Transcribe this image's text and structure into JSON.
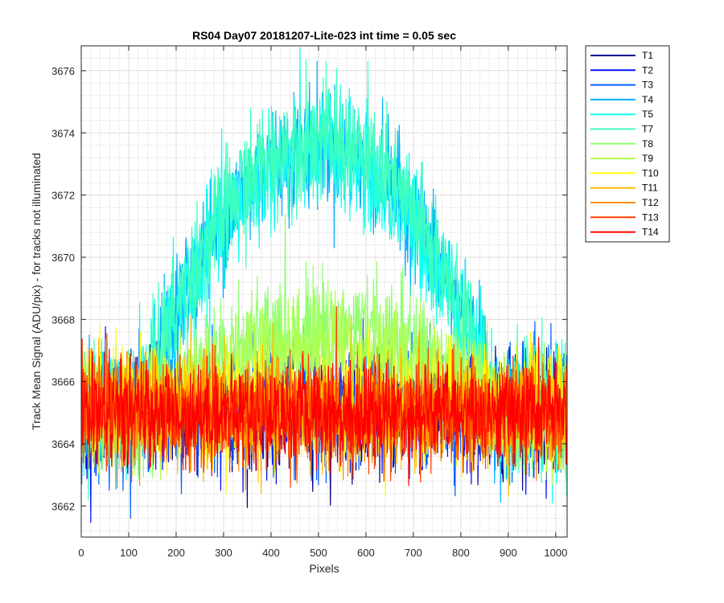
{
  "chart_data": {
    "type": "line",
    "title": "RS04 Day07 20181207-Lite-023 int time = 0.05 sec",
    "xlabel": "Pixels",
    "ylabel": "Track Mean Signal (ADU/pix) - for tracks not illuminated",
    "xlim": [
      0,
      1024
    ],
    "ylim": [
      3661,
      3676.8
    ],
    "x_ticks": [
      0,
      100,
      200,
      300,
      400,
      500,
      600,
      700,
      800,
      900,
      1000
    ],
    "y_ticks": [
      3662,
      3664,
      3666,
      3668,
      3670,
      3672,
      3674,
      3676
    ],
    "grid": "major and minor",
    "legend_position": "outside-right",
    "series": [
      {
        "name": "T1",
        "color": "#00008f",
        "profile": "flat",
        "peak": 3665.0,
        "noise": 1.1
      },
      {
        "name": "T2",
        "color": "#0010ff",
        "profile": "flat",
        "peak": 3665.0,
        "noise": 1.1
      },
      {
        "name": "T3",
        "color": "#0060ff",
        "profile": "flat",
        "peak": 3665.2,
        "noise": 1.2
      },
      {
        "name": "T4",
        "color": "#00afff",
        "profile": "arch",
        "peak": 3673.6,
        "noise": 1.2
      },
      {
        "name": "T5",
        "color": "#10ffef",
        "profile": "arch",
        "peak": 3673.4,
        "noise": 1.2
      },
      {
        "name": "T7",
        "color": "#3fffbf",
        "profile": "arch",
        "peak": 3673.8,
        "noise": 1.2
      },
      {
        "name": "T8",
        "color": "#8fff70",
        "profile": "hump",
        "peak": 3667.8,
        "noise": 1.1
      },
      {
        "name": "T9",
        "color": "#afff4f",
        "profile": "hump",
        "peak": 3667.2,
        "noise": 1.1
      },
      {
        "name": "T10",
        "color": "#ffff00",
        "profile": "flat",
        "peak": 3665.3,
        "noise": 1.1
      },
      {
        "name": "T11",
        "color": "#ffbf00",
        "profile": "flat",
        "peak": 3665.0,
        "noise": 1.1
      },
      {
        "name": "T12",
        "color": "#ff8f00",
        "profile": "flat",
        "peak": 3665.0,
        "noise": 1.0
      },
      {
        "name": "T13",
        "color": "#ff4000",
        "profile": "flat",
        "peak": 3665.0,
        "noise": 1.0
      },
      {
        "name": "T14",
        "color": "#ff0000",
        "profile": "flat",
        "peak": 3665.0,
        "noise": 1.0
      }
    ]
  }
}
